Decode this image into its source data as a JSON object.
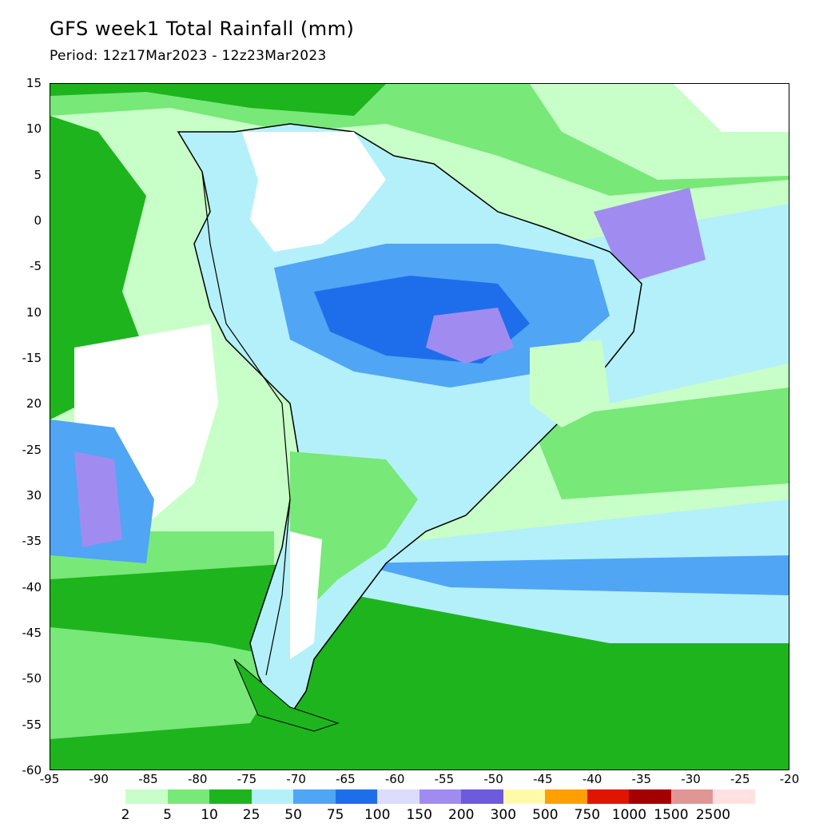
{
  "header": {
    "title": "GFS week1 Total Rainfall (mm)",
    "period": "Period: 12z17Mar2023 - 12z23Mar2023"
  },
  "map": {
    "lon_range": [
      -95,
      -20
    ],
    "lat_range": [
      -60,
      15
    ],
    "lat_labels": [
      "15",
      "10",
      "5",
      "0",
      "-5",
      "10",
      "-15",
      "20",
      "-25",
      "30",
      "-35",
      "-40",
      "-45",
      "-50",
      "-55",
      "-60"
    ],
    "lon_labels": [
      "-95",
      "-90",
      "-85",
      "-80",
      "-75",
      "-70",
      "-65",
      "-60",
      "-55",
      "-50",
      "-45",
      "-40",
      "-35",
      "-30",
      "-25",
      "-20"
    ]
  },
  "colorbar": {
    "levels": [
      "2",
      "5",
      "10",
      "25",
      "50",
      "75",
      "100",
      "150",
      "200",
      "300",
      "500",
      "750",
      "1000",
      "1500",
      "2500"
    ],
    "colors": [
      "#c8ffc8",
      "#78e878",
      "#1eb41e",
      "#b4f0fa",
      "#50a5f5",
      "#1e6eeb",
      "#dcdcff",
      "#a08cf0",
      "#6e5adc",
      "#fffaaa",
      "#ffa000",
      "#e11400",
      "#a50000",
      "#e19696",
      "#ffe1e1"
    ]
  },
  "colors": {
    "land_dry": "#ffffff",
    "ocean_light": "#c8ffc8",
    "coast": "#000000"
  }
}
